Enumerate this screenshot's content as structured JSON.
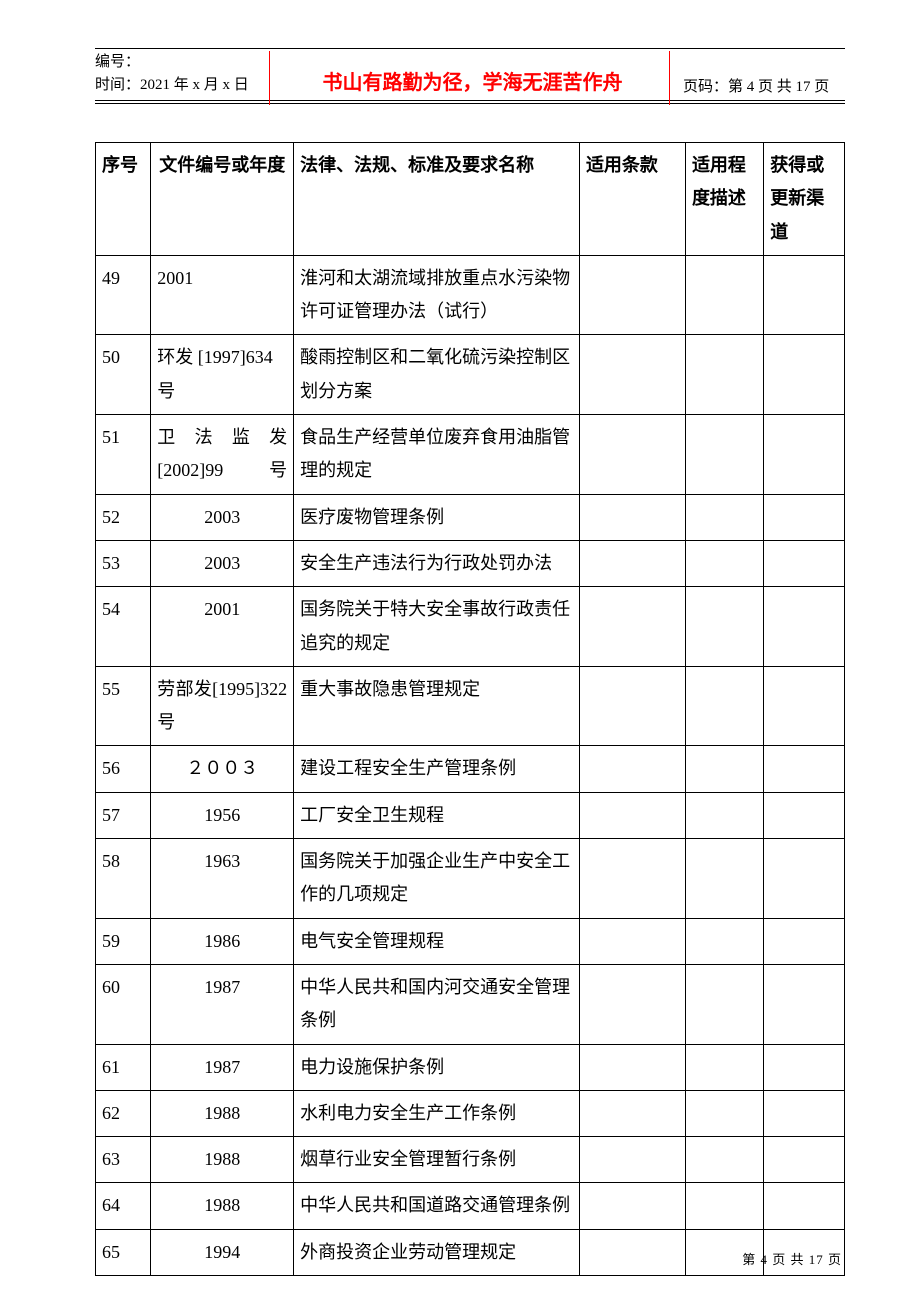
{
  "header": {
    "doc_number_label": "编号：",
    "time_label": "时间：2021 年 x 月 x 日",
    "motto": "书山有路勤为径，学海无涯苦作舟",
    "page_label": "页码：第 4 页  共 17 页"
  },
  "table": {
    "headers": {
      "seq": "序号",
      "doc": "文件编号或年度",
      "name": "法律、法规、标准及要求名称",
      "clause": "适用条款",
      "degree": "适用程度描述",
      "source": "获得或更新渠道"
    },
    "rows": [
      {
        "seq": "49",
        "doc": "2001",
        "doc_align": "left",
        "name": "淮河和太湖流域排放重点水污染物许可证管理办法（试行）"
      },
      {
        "seq": "50",
        "doc": "环发 [1997]634号",
        "doc_align": "left",
        "name": "酸雨控制区和二氧化硫污染控制区划分方案"
      },
      {
        "seq": "51",
        "doc": "卫法监发[2002]99 号",
        "doc_align": "justify",
        "name": "食品生产经营单位废弃食用油脂管理的规定"
      },
      {
        "seq": "52",
        "doc": "2003",
        "doc_align": "center",
        "name": "医疗废物管理条例"
      },
      {
        "seq": "53",
        "doc": "2003",
        "doc_align": "center",
        "name": "安全生产违法行为行政处罚办法"
      },
      {
        "seq": "54",
        "doc": "2001",
        "doc_align": "center",
        "name": "国务院关于特大安全事故行政责任追究的规定"
      },
      {
        "seq": "55",
        "doc": "劳部发[1995]322 号",
        "doc_align": "justify",
        "name": "重大事故隐患管理规定"
      },
      {
        "seq": "56",
        "doc": "２００３",
        "doc_align": "center",
        "name": "建设工程安全生产管理条例"
      },
      {
        "seq": "57",
        "doc": "1956",
        "doc_align": "center",
        "name": "工厂安全卫生规程"
      },
      {
        "seq": "58",
        "doc": "1963",
        "doc_align": "center",
        "name": "国务院关于加强企业生产中安全工作的几项规定"
      },
      {
        "seq": "59",
        "doc": "1986",
        "doc_align": "center",
        "name": "电气安全管理规程"
      },
      {
        "seq": "60",
        "doc": "1987",
        "doc_align": "center",
        "name": "中华人民共和国内河交通安全管理条例"
      },
      {
        "seq": "61",
        "doc": "1987",
        "doc_align": "center",
        "name": "电力设施保护条例"
      },
      {
        "seq": "62",
        "doc": "1988",
        "doc_align": "center",
        "name": "水利电力安全生产工作条例"
      },
      {
        "seq": "63",
        "doc": "1988",
        "doc_align": "center",
        "name": "烟草行业安全管理暂行条例"
      },
      {
        "seq": "64",
        "doc": "1988",
        "doc_align": "center",
        "name": "中华人民共和国道路交通管理条例"
      },
      {
        "seq": "65",
        "doc": "1994",
        "doc_align": "center",
        "name": "外商投资企业劳动管理规定"
      }
    ]
  },
  "footer": {
    "text": "第 4 页 共 17 页"
  },
  "style": {
    "motto_color": "#ff0000",
    "text_color": "#000000",
    "border_color": "#000000",
    "background": "#ffffff",
    "body_fontsize": 18,
    "header_small_fontsize": 15,
    "motto_fontsize": 20,
    "footer_fontsize": 13
  }
}
